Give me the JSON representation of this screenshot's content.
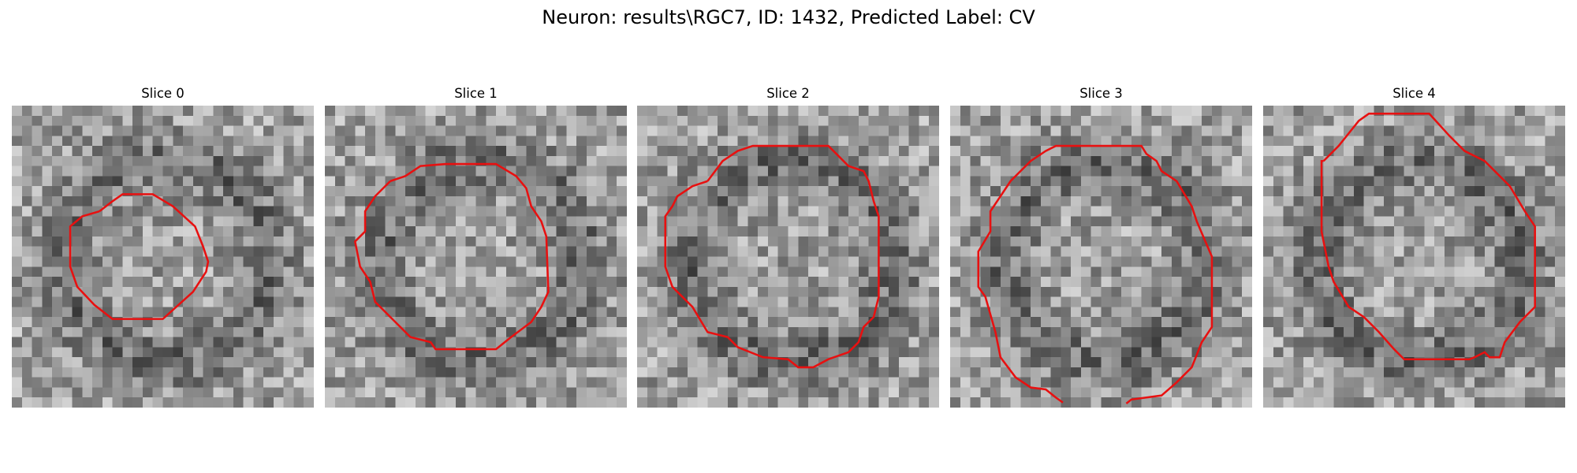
{
  "figure": {
    "title": "Neuron: results\\RGC7, ID: 1432, Predicted Label: CV"
  },
  "panels": [
    {
      "title": "Slice 0"
    },
    {
      "title": "Slice 1"
    },
    {
      "title": "Slice 2"
    },
    {
      "title": "Slice 3"
    },
    {
      "title": "Slice 4"
    }
  ],
  "contour_color": "#e81010",
  "colormap": "gray"
}
